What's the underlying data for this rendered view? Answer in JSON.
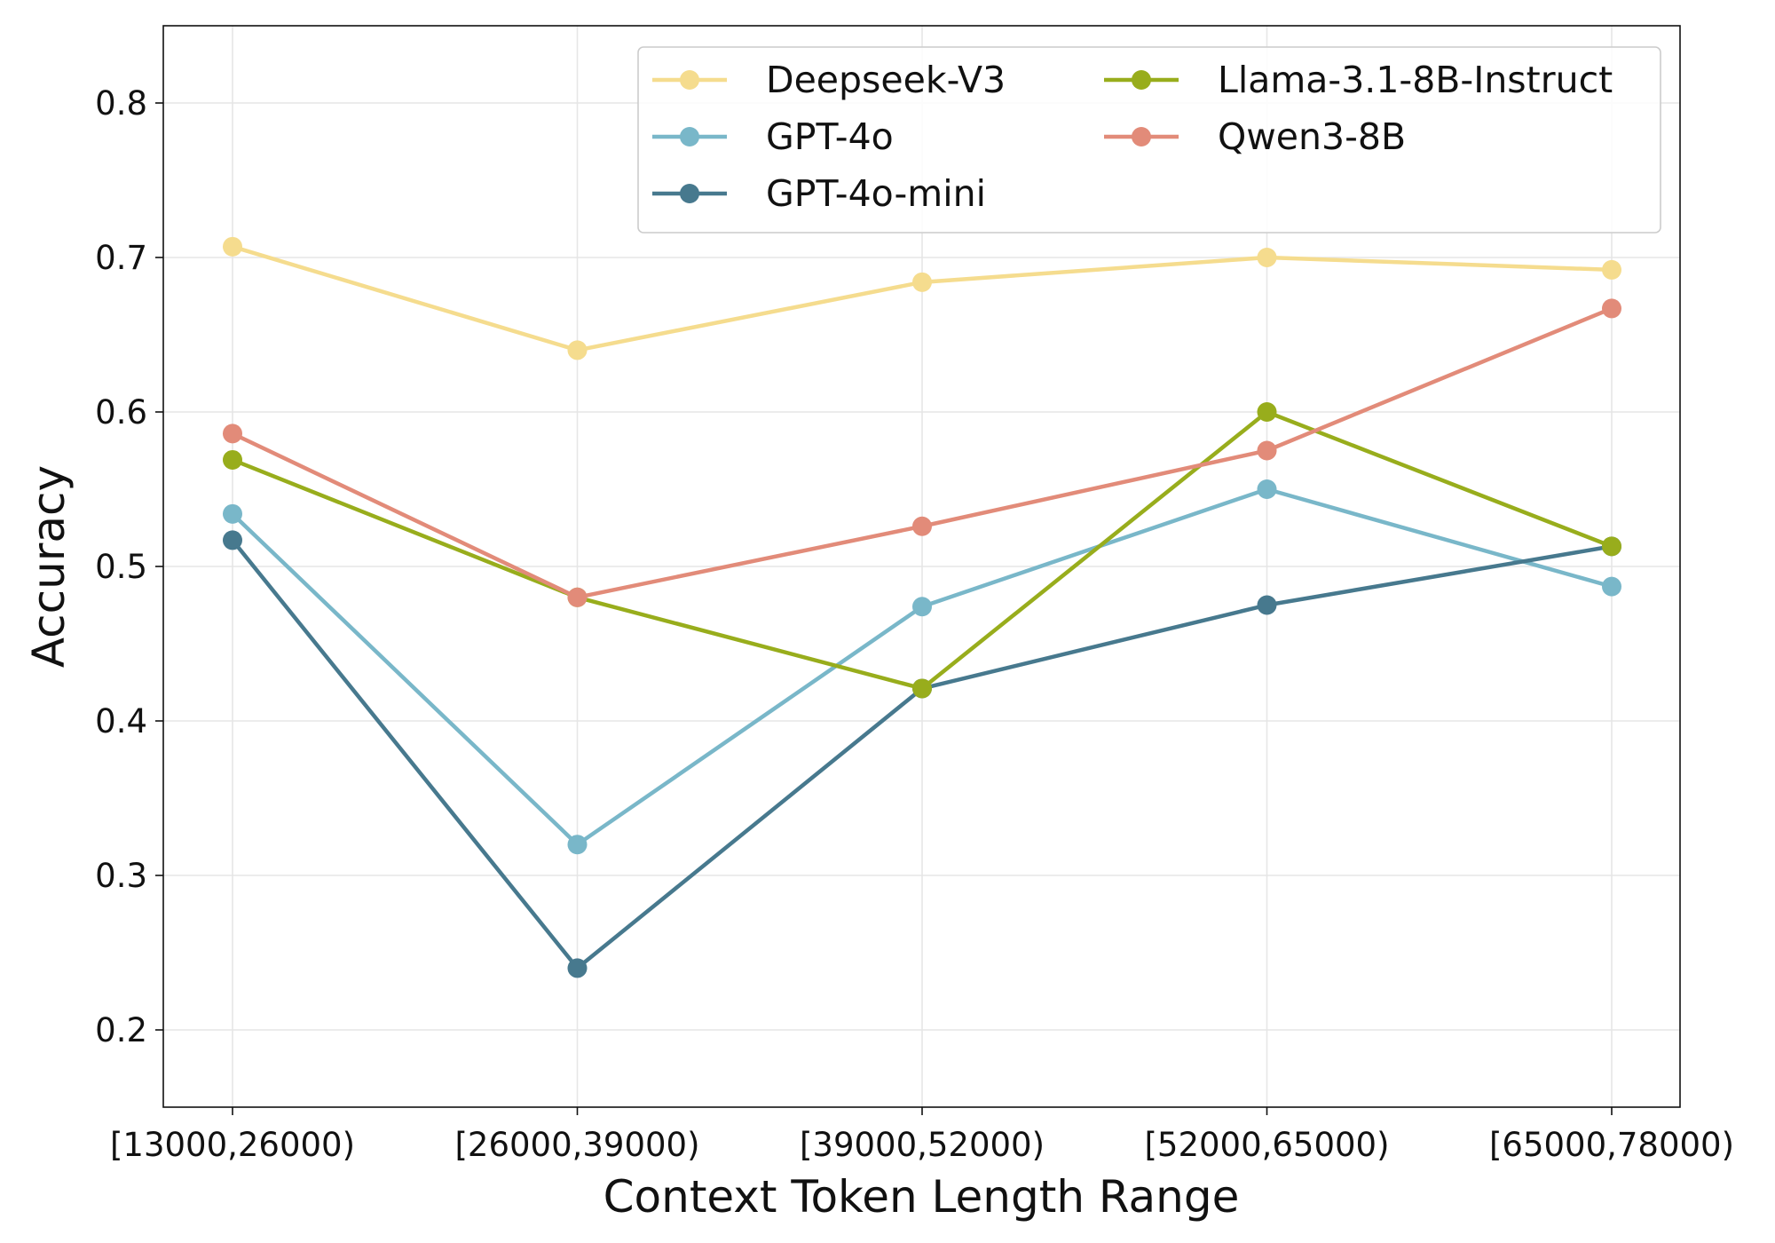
{
  "chart_data": {
    "type": "line",
    "title": "",
    "xlabel": "Context Token Length Range",
    "ylabel": "Accuracy",
    "categories": [
      "[13000,26000)",
      "[26000,39000)",
      "[39000,52000)",
      "[52000,65000)",
      "[65000,78000)"
    ],
    "ylim": [
      0.15,
      0.85
    ],
    "yticks": [
      0.2,
      0.3,
      0.4,
      0.5,
      0.6,
      0.7,
      0.8
    ],
    "ytick_labels": [
      "0.2",
      "0.3",
      "0.4",
      "0.5",
      "0.6",
      "0.7",
      "0.8"
    ],
    "grid": true,
    "legend_position": "top-right",
    "series": [
      {
        "name": "Deepseek-V3",
        "color": "#f5dc8e",
        "values": [
          0.707,
          0.64,
          0.684,
          0.7,
          0.692
        ]
      },
      {
        "name": "GPT-4o",
        "color": "#79b7c9",
        "values": [
          0.534,
          0.32,
          0.474,
          0.55,
          0.487
        ]
      },
      {
        "name": "GPT-4o-mini",
        "color": "#47798e",
        "values": [
          0.517,
          0.24,
          0.421,
          0.475,
          0.513
        ]
      },
      {
        "name": "Llama-3.1-8B-Instruct",
        "color": "#98ad1c",
        "values": [
          0.569,
          0.48,
          0.421,
          0.6,
          0.513
        ]
      },
      {
        "name": "Qwen3-8B",
        "color": "#e28b79",
        "values": [
          0.586,
          0.48,
          0.526,
          0.575,
          0.667
        ]
      }
    ]
  }
}
